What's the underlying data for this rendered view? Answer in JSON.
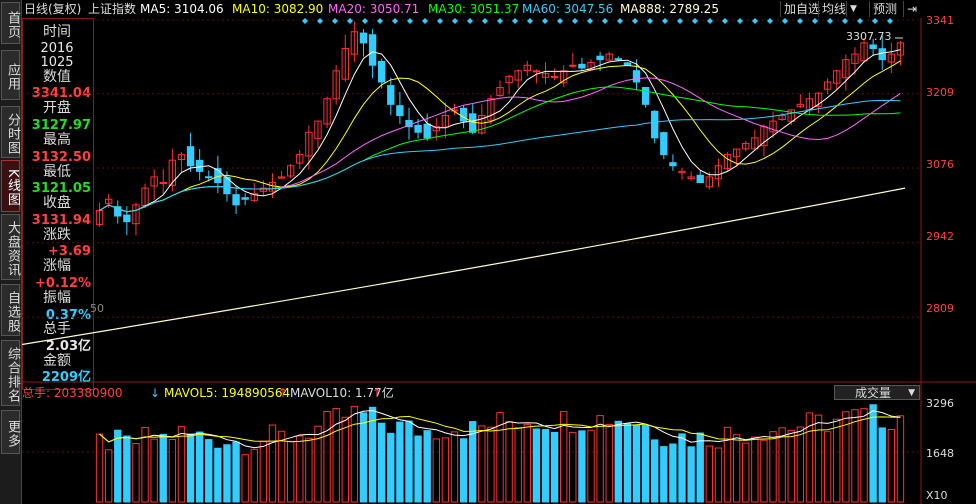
{
  "nav": {
    "tabs": [
      {
        "label": "首页"
      },
      {
        "label": "应用"
      },
      {
        "label": "分时图"
      },
      {
        "label": "K线图"
      },
      {
        "label": "大盘资讯"
      },
      {
        "label": "自选股"
      },
      {
        "label": "综合排名"
      },
      {
        "label": "更多"
      }
    ]
  },
  "header": {
    "chart_title": "日线(复权)",
    "index_name": "上证指数",
    "ma5": "MA5: 3104.06",
    "ma10": "MA10: 3082.90",
    "ma20": "MA20: 3050.71",
    "ma30": "MA30: 3051.37",
    "ma60": "MA60: 3047.56",
    "ma888": "MA888: 2789.25",
    "btn_add": "加自选",
    "btn_avg": "均线",
    "btn_predict": "预测",
    "arrow": "▼",
    "colors": {
      "ma5": "#ffffff",
      "ma10": "#ffff00",
      "ma20": "#ff66ff",
      "ma30": "#00ff00",
      "ma60": "#33ccff",
      "ma888": "#ffffcc"
    }
  },
  "info": {
    "time_label": "时间",
    "year": "2016",
    "date": "1025",
    "value_label": "数值",
    "value": "3341.04",
    "open_label": "开盘",
    "open": "3127.97",
    "high_label": "最高",
    "high": "3132.50",
    "low_label": "最低",
    "low": "3121.05",
    "close_label": "收盘",
    "close": "3131.94",
    "change_label": "涨跌",
    "change": "+3.69",
    "pct_label": "涨幅",
    "pct": "+0.12%",
    "amp_label": "振幅",
    "amp": "0.37%",
    "vol_label": "总手",
    "vol": "2.03亿",
    "amt_label": "金额",
    "amt": "2209亿"
  },
  "price_axis": {
    "ticks": [
      "3341",
      "3209",
      "3076",
      "2942",
      "2809"
    ],
    "max_label": "3307.73",
    "side_fragment": "50"
  },
  "volume": {
    "total": "总手: 203380900",
    "mavol5": "MAVOL5: 194890564",
    "mavol10": "MAVOL10: 1.77亿",
    "dropdown": "成交量",
    "ticks": [
      "3296",
      "1648"
    ],
    "multiplier": "X10"
  },
  "chart_data": {
    "type": "candlestick",
    "title": "日线(复权) 上证指数",
    "ylim": [
      2700,
      3341
    ],
    "yticks": [
      3341,
      3209,
      3076,
      2942,
      2809
    ],
    "volume_ylim": [
      0,
      3296
    ],
    "volume_yticks": [
      3296,
      1648
    ],
    "series": [
      {
        "name": "MA5",
        "last": 3104.06
      },
      {
        "name": "MA10",
        "last": 3082.9
      },
      {
        "name": "MA20",
        "last": 3050.71
      },
      {
        "name": "MA30",
        "last": 3051.37
      },
      {
        "name": "MA60",
        "last": 3047.56
      },
      {
        "name": "MA888",
        "last": 2789.25
      }
    ],
    "closes": [
      3000,
      3020,
      2990,
      2980,
      3010,
      3040,
      3060,
      3050,
      3090,
      3100,
      3080,
      3070,
      3060,
      3050,
      3030,
      3010,
      3020,
      3030,
      3040,
      3050,
      3060,
      3080,
      3100,
      3140,
      3160,
      3200,
      3250,
      3290,
      3320,
      3300,
      3260,
      3230,
      3190,
      3170,
      3150,
      3140,
      3130,
      3150,
      3170,
      3180,
      3160,
      3140,
      3170,
      3200,
      3220,
      3240,
      3250,
      3260,
      3250,
      3245,
      3240,
      3250,
      3260,
      3255,
      3265,
      3270,
      3280,
      3270,
      3260,
      3230,
      3190,
      3130,
      3100,
      3080,
      3070,
      3060,
      3050,
      3060,
      3080,
      3100,
      3110,
      3120,
      3130,
      3150,
      3160,
      3170,
      3180,
      3190,
      3200,
      3210,
      3230,
      3250,
      3270,
      3280,
      3300,
      3290,
      3270,
      3280,
      3300
    ]
  }
}
